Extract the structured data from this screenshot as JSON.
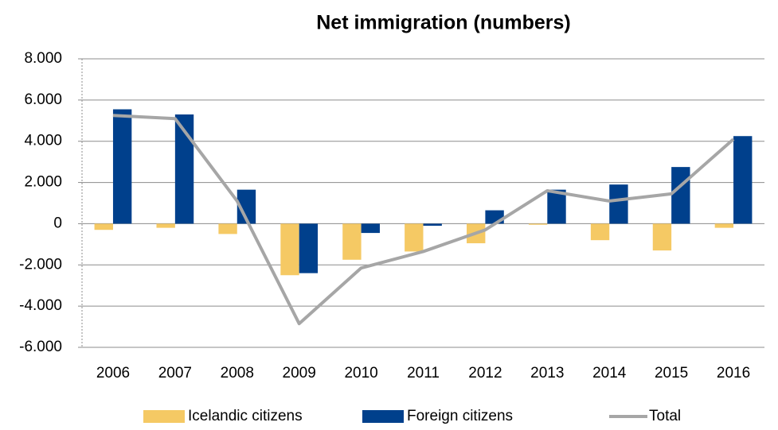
{
  "chart_data": {
    "type": "bar",
    "title": "Net immigration (numbers)",
    "categories": [
      "2006",
      "2007",
      "2008",
      "2009",
      "2010",
      "2011",
      "2012",
      "2013",
      "2014",
      "2015",
      "2016"
    ],
    "series": [
      {
        "name": "Icelandic citizens",
        "type": "bar",
        "color": "#f5c964",
        "values": [
          -300,
          -200,
          -500,
          -2500,
          -1750,
          -1350,
          -950,
          -50,
          -800,
          -1300,
          -200
        ]
      },
      {
        "name": "Foreign citizens",
        "type": "bar",
        "color": "#00408c",
        "values": [
          5550,
          5300,
          1650,
          -2400,
          -450,
          -100,
          650,
          1650,
          1900,
          2750,
          4250
        ]
      },
      {
        "name": "Total",
        "type": "line",
        "color": "#a6a6a6",
        "values": [
          5250,
          5100,
          1100,
          -4850,
          -2150,
          -1350,
          -300,
          1600,
          1100,
          1450,
          4100
        ]
      }
    ],
    "ylim": [
      -6000,
      8000
    ],
    "yticks": [
      {
        "value": -6000,
        "label": "-6.000"
      },
      {
        "value": -4000,
        "label": "-4.000"
      },
      {
        "value": -2000,
        "label": "-2.000"
      },
      0,
      {
        "value": 2000,
        "label": "2.000"
      },
      {
        "value": 4000,
        "label": "4.000"
      },
      {
        "value": 6000,
        "label": "6.000"
      },
      {
        "value": 8000,
        "label": "8.000"
      }
    ],
    "grid": true,
    "legend": "bottom"
  }
}
